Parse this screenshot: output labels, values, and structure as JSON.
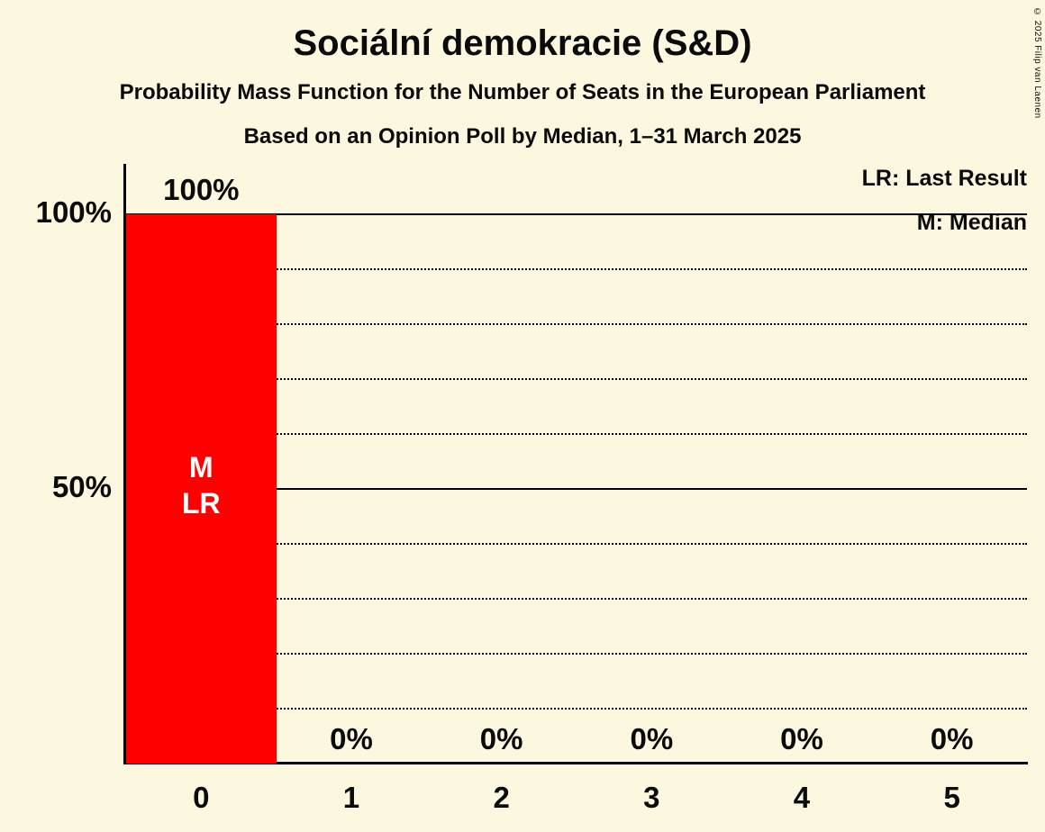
{
  "header": {
    "title": "Sociální demokracie (S&D)",
    "subtitle1": "Probability Mass Function for the Number of Seats in the European Parliament",
    "subtitle2": "Based on an Opinion Poll by Median, 1–31 March 2025"
  },
  "legend": {
    "lr": "LR: Last Result",
    "m": "M: Median"
  },
  "copyright": "© 2025 Filip van Laenen",
  "colors": {
    "background": "#FCF7DF",
    "bar": "#FF0000",
    "text": "#0B0B0B",
    "bar_label": "#FFFFFF",
    "gridline": "#000000"
  },
  "chart_data": {
    "type": "bar",
    "title": "Sociální demokracie (S&D)",
    "xlabel": "",
    "ylabel": "",
    "categories": [
      "0",
      "1",
      "2",
      "3",
      "4",
      "5"
    ],
    "values": [
      100,
      0,
      0,
      0,
      0,
      0
    ],
    "value_labels": [
      "100%",
      "0%",
      "0%",
      "0%",
      "0%",
      "0%"
    ],
    "bar_annotations": [
      {
        "category": "0",
        "lines": [
          "M",
          "LR"
        ]
      }
    ],
    "y_ticks": [
      {
        "value": 100,
        "label": "100%"
      },
      {
        "value": 50,
        "label": "50%"
      }
    ],
    "ylim": [
      0,
      100
    ],
    "solid_gridlines": [
      50,
      100
    ],
    "dotted_gridlines": [
      10,
      20,
      30,
      40,
      60,
      70,
      80,
      90
    ],
    "grid": true,
    "legend_position": "top-right"
  }
}
